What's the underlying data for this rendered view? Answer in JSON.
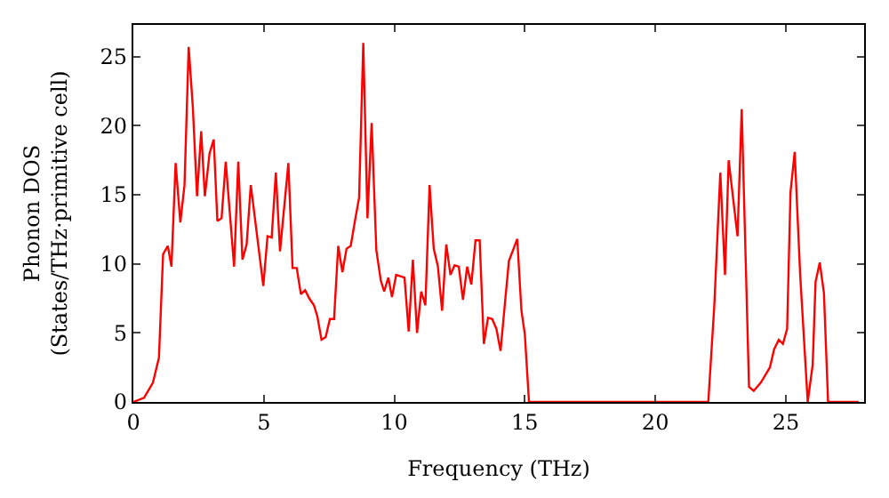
{
  "chart_data": {
    "type": "line",
    "xlabel": "Frequency (THz)",
    "ylabel": "Phonon DOS\n(States/THz·primitive cell)",
    "x": [
      0,
      0.41,
      0.75,
      0.98,
      1.14,
      1.32,
      1.46,
      1.62,
      1.8,
      1.96,
      2.12,
      2.28,
      2.44,
      2.6,
      2.74,
      2.92,
      3.08,
      3.22,
      3.38,
      3.54,
      3.86,
      4.02,
      4.18,
      4.34,
      4.5,
      4.98,
      5.14,
      5.3,
      5.46,
      5.62,
      5.94,
      6.1,
      6.26,
      6.42,
      6.58,
      6.74,
      6.92,
      7.05,
      7.21,
      7.37,
      7.53,
      7.69,
      7.85,
      8.01,
      8.17,
      8.33,
      8.49,
      8.65,
      8.81,
      8.97,
      9.13,
      9.31,
      9.48,
      9.61,
      9.77,
      9.91,
      10.07,
      10.39,
      10.55,
      10.71,
      10.87,
      11.03,
      11.19,
      11.35,
      11.51,
      11.67,
      11.83,
      11.99,
      12.15,
      12.31,
      12.47,
      12.63,
      12.79,
      12.95,
      13.11,
      13.27,
      13.43,
      13.59,
      13.75,
      13.91,
      14.07,
      14.23,
      14.39,
      14.71,
      14.87,
      15.0,
      15.16,
      22.03,
      22.26,
      22.49,
      22.67,
      22.81,
      23.15,
      23.31,
      23.59,
      23.77,
      24.04,
      24.39,
      24.55,
      24.73,
      24.89,
      25.05,
      25.18,
      25.34,
      25.55,
      25.84,
      26.03,
      26.14,
      26.3,
      26.46,
      26.62,
      27.8
    ],
    "series": [
      {
        "color": "#ff0000",
        "values": [
          0,
          0.3,
          1.4,
          3.2,
          10.7,
          11.3,
          9.8,
          17.3,
          13,
          15.7,
          25.7,
          21.3,
          14.9,
          19.6,
          14.9,
          18,
          19,
          13.1,
          13.3,
          17.4,
          9.8,
          17.4,
          10.3,
          11.4,
          15.7,
          8.4,
          12,
          11.9,
          16.6,
          10.9,
          17.3,
          9.7,
          9.7,
          7.8,
          8.1,
          7.5,
          7,
          6.2,
          4.5,
          4.7,
          6,
          6,
          11.3,
          9.4,
          11.1,
          11.3,
          13.1,
          14.8,
          26,
          13.3,
          20.2,
          11,
          8.8,
          8,
          9,
          7.6,
          9.2,
          9,
          5.1,
          10.3,
          5,
          8,
          7,
          15.7,
          11.1,
          9.8,
          6.6,
          11.4,
          9.2,
          9.9,
          9.8,
          7.4,
          9.8,
          8.5,
          11.7,
          11.7,
          4.2,
          6.1,
          6,
          5.3,
          3.7,
          7,
          10.2,
          11.8,
          6.6,
          4.9,
          0,
          0,
          7,
          16.6,
          9.2,
          17.5,
          12,
          21.2,
          1.1,
          0.8,
          1.4,
          2.5,
          3.8,
          4.5,
          4.2,
          5.3,
          15.2,
          18.1,
          9.2,
          0,
          2.7,
          8.7,
          10.1,
          7.9,
          0,
          0
        ]
      }
    ],
    "xlim": [
      0,
      28
    ],
    "xticks": [
      0,
      5,
      10,
      15,
      20,
      25
    ],
    "ylim": [
      0,
      27.3
    ],
    "yticks": [
      0,
      5,
      10,
      15,
      20,
      25
    ],
    "marker": "none",
    "line_style": "solid"
  }
}
